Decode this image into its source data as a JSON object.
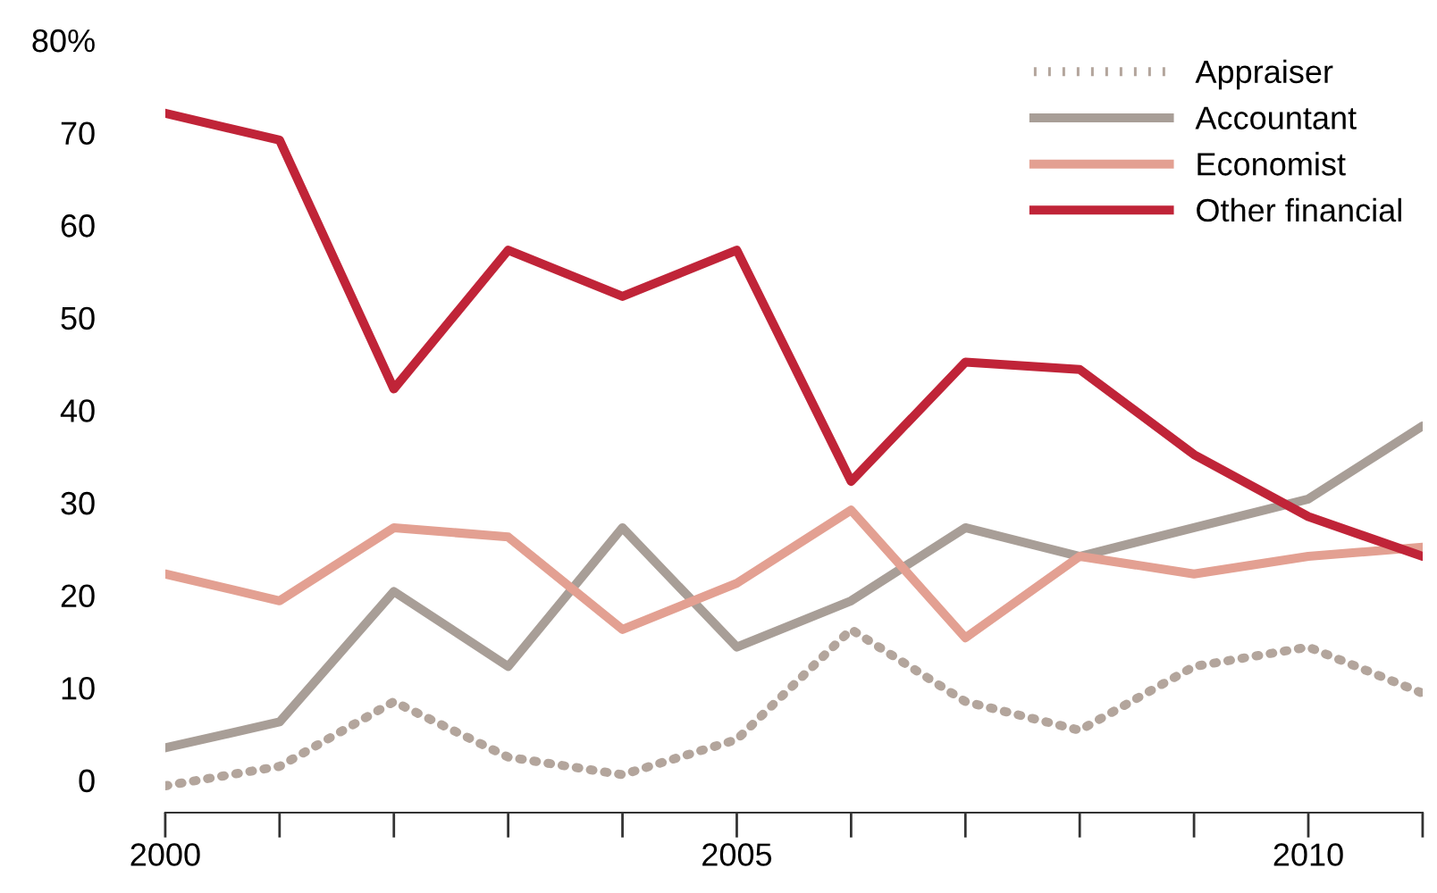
{
  "chart_data": {
    "type": "line",
    "x": [
      2000,
      2001,
      2002,
      2003,
      2004,
      2005,
      2006,
      2007,
      2008,
      2009,
      2010,
      2011
    ],
    "series": [
      {
        "name": "Appraiser",
        "color": "#b3a59c",
        "line_style": "dotted",
        "values": [
          -0.6,
          1.5,
          8.5,
          2.5,
          0.6,
          4.4,
          16.3,
          8.5,
          5.4,
          12.3,
          14.4,
          9.4
        ]
      },
      {
        "name": "Accountant",
        "color": "#a89e97",
        "line_style": "solid",
        "values": [
          3.5,
          6.3,
          20.4,
          12.3,
          27.3,
          14.4,
          19.4,
          27.3,
          24.2,
          27.3,
          30.4,
          38.3
        ]
      },
      {
        "name": "Economist",
        "color": "#e3a092",
        "line_style": "solid",
        "values": [
          22.3,
          19.4,
          27.3,
          26.3,
          16.3,
          21.3,
          29.2,
          15.4,
          24.2,
          22.3,
          24.2,
          25.2
        ]
      },
      {
        "name": "Other financial",
        "color": "#c02438",
        "line_style": "solid",
        "values": [
          72.1,
          69.2,
          42.3,
          57.3,
          52.3,
          57.3,
          32.3,
          45.2,
          44.4,
          35.2,
          28.5,
          24.2
        ]
      }
    ],
    "xlim": [
      2000,
      2011
    ],
    "ylim": [
      -3.5,
      80
    ],
    "xticks": [
      2000,
      {
        "value": 2001,
        "label": null
      },
      {
        "value": 2002,
        "label": null
      },
      {
        "value": 2003,
        "label": null
      },
      {
        "value": 2004,
        "label": null
      },
      2005,
      {
        "value": 2006,
        "label": null
      },
      {
        "value": 2007,
        "label": null
      },
      {
        "value": 2008,
        "label": null
      },
      {
        "value": 2009,
        "label": null
      },
      2010,
      {
        "value": 2011,
        "label": null
      }
    ],
    "yticks": [
      0,
      10,
      20,
      30,
      40,
      50,
      60,
      70,
      {
        "value": 80,
        "label": "80%"
      }
    ],
    "grid": false,
    "legend": "top right",
    "marker": "none"
  }
}
